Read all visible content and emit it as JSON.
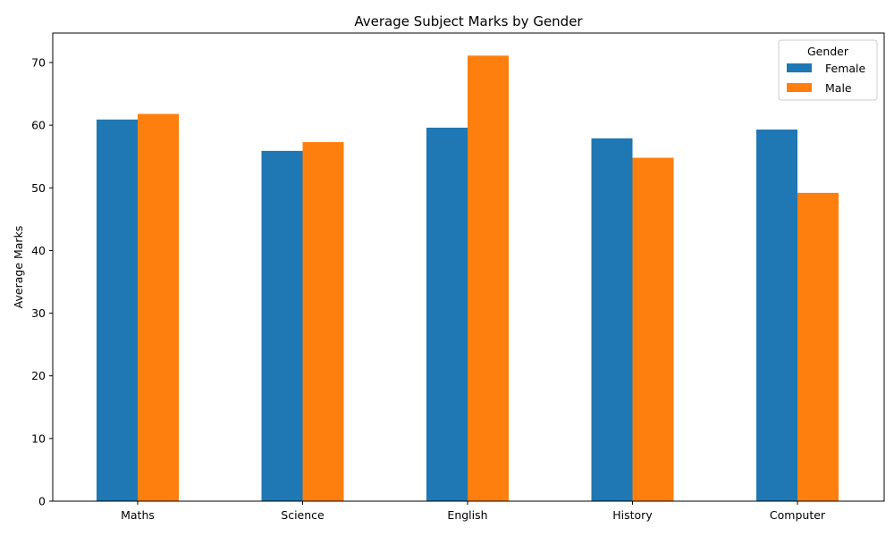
{
  "chart_data": {
    "type": "bar",
    "title": "Average Subject Marks by Gender",
    "xlabel": "",
    "ylabel": "Average Marks",
    "categories": [
      "Maths",
      "Science",
      "English",
      "History",
      "Computer"
    ],
    "series": [
      {
        "name": "Female",
        "values": [
          60.9,
          55.9,
          59.6,
          57.9,
          59.3
        ],
        "color": "#1f77b4"
      },
      {
        "name": "Male",
        "values": [
          61.8,
          57.3,
          71.1,
          54.8,
          49.2
        ],
        "color": "#ff7f0e"
      }
    ],
    "ylim": [
      0,
      74.7
    ],
    "yticks": [
      0,
      10,
      20,
      30,
      40,
      50,
      60,
      70
    ],
    "legend": {
      "title": "Gender",
      "position": "top-right"
    },
    "grid": false
  }
}
